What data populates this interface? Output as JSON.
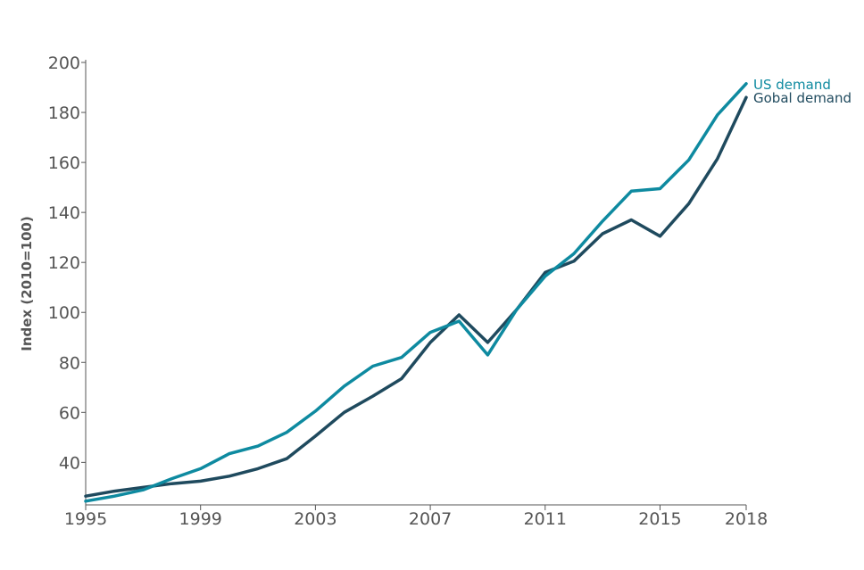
{
  "chart_data": {
    "type": "line",
    "title": "",
    "xlabel": "",
    "ylabel": "Index (2010=100)",
    "xlim": [
      1995,
      2018
    ],
    "ylim": [
      23,
      200
    ],
    "x_ticks": [
      1995,
      1999,
      2003,
      2007,
      2011,
      2015,
      2018
    ],
    "y_ticks": [
      40,
      60,
      80,
      100,
      120,
      140,
      160,
      180,
      200
    ],
    "grid": false,
    "legend": "line-end labels, right",
    "x": [
      1995,
      1996,
      1997,
      1998,
      1999,
      2000,
      2001,
      2002,
      2003,
      2004,
      2005,
      2006,
      2007,
      2008,
      2009,
      2010,
      2011,
      2012,
      2013,
      2014,
      2015,
      2016,
      2017,
      2018
    ],
    "series": [
      {
        "name": "US demand",
        "color": "#0e8aa0",
        "values": [
          24.5,
          26.5,
          29,
          33.5,
          37.5,
          43.5,
          46.5,
          52,
          60.5,
          70.5,
          78.5,
          82,
          92,
          96.5,
          83,
          101,
          114.5,
          123.5,
          136.5,
          148.5,
          149.5,
          161,
          179,
          191.5
        ]
      },
      {
        "name": "Gobal demand",
        "color": "#1f4a5e",
        "values": [
          26.5,
          28.5,
          30,
          31.5,
          32.5,
          34.5,
          37.5,
          41.5,
          50.5,
          60,
          66.5,
          73.5,
          88,
          99,
          88,
          101,
          116,
          120.5,
          131.5,
          137,
          130.5,
          143.5,
          161.5,
          186
        ]
      }
    ]
  }
}
